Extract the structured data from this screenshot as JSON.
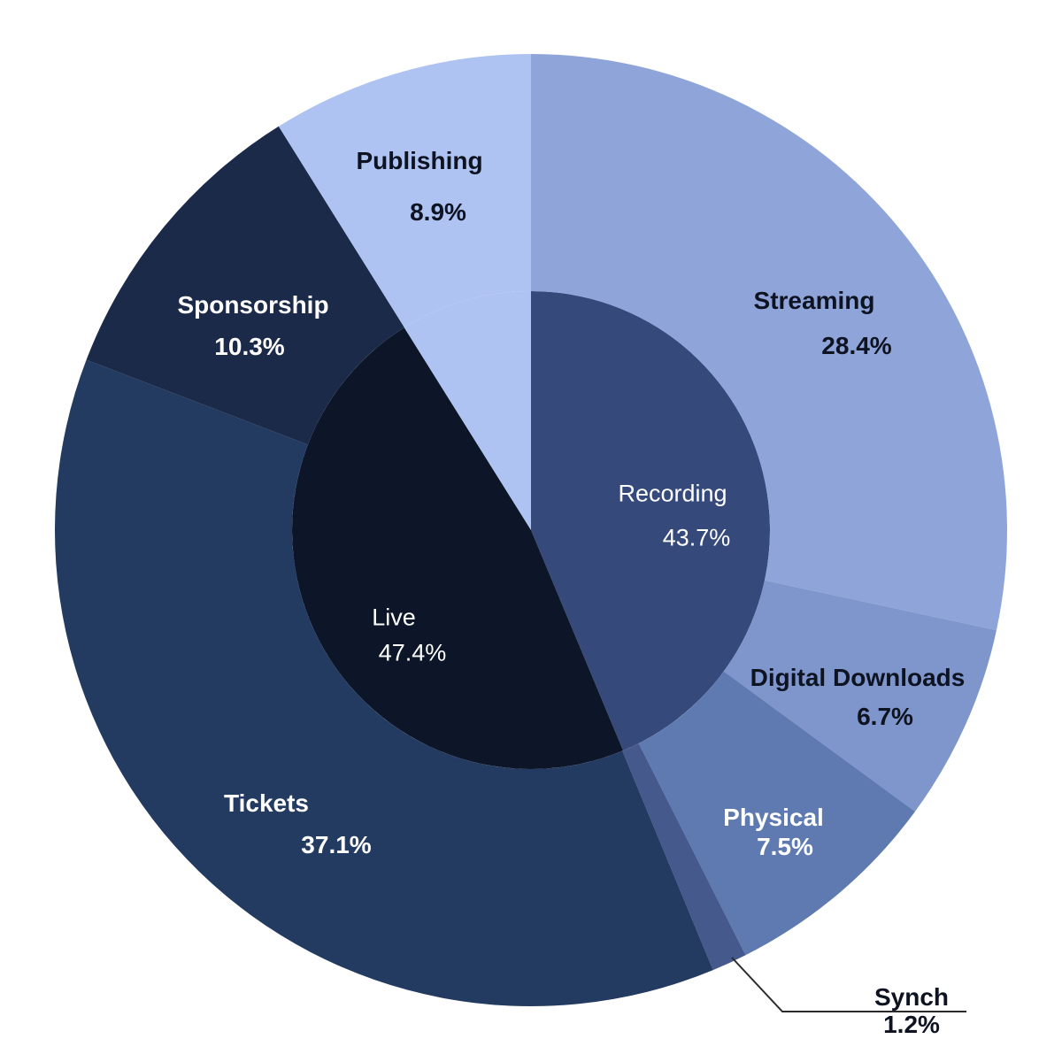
{
  "chart_data": {
    "type": "pie",
    "subtype": "nested-donut",
    "title": "",
    "legend": "none",
    "background_color": "#ffffff",
    "label_color_dark": "#0e1322",
    "label_color_light": "#ffffff",
    "rings": {
      "inner": {
        "radius_ratio": 0.5,
        "segments": [
          {
            "label": "Recording",
            "value": 43.7,
            "display": "43.7%",
            "color": "#35497a",
            "text_color": "#ffffff"
          },
          {
            "label": "Live",
            "value": 47.4,
            "display": "47.4%",
            "color": "#0c1628",
            "text_color": "#ffffff"
          },
          {
            "label": "Publishing",
            "value": 8.9,
            "display": "8.9%",
            "color": "#aec3f1",
            "text_color": "#0e1322"
          }
        ]
      },
      "outer": {
        "segments": [
          {
            "label": "Streaming",
            "value": 28.4,
            "display": "28.4%",
            "color": "#8fa5da",
            "text_color": "#0e1322"
          },
          {
            "label": "Digital Downloads",
            "value": 6.7,
            "display": "6.7%",
            "color": "#7e96cb",
            "text_color": "#0e1322"
          },
          {
            "label": "Physical",
            "value": 7.5,
            "display": "7.5%",
            "color": "#5e7ab1",
            "text_color": "#ffffff"
          },
          {
            "label": "Synch",
            "value": 1.2,
            "display": "1.2%",
            "color": "#45598c",
            "text_color": "#0e1322"
          },
          {
            "label": "Tickets",
            "value": 37.1,
            "display": "37.1%",
            "color": "#233a61",
            "text_color": "#ffffff"
          },
          {
            "label": "Sponsorship",
            "value": 10.3,
            "display": "10.3%",
            "color": "#1b2a48",
            "text_color": "#ffffff"
          },
          {
            "label": "Publishing",
            "value": 8.9,
            "display": "8.9%",
            "color": "#aec3f1",
            "text_color": "#0e1322"
          }
        ]
      }
    },
    "callout": {
      "label": "Synch",
      "display": "1.2%",
      "line_color": "#2a2a2a"
    }
  }
}
